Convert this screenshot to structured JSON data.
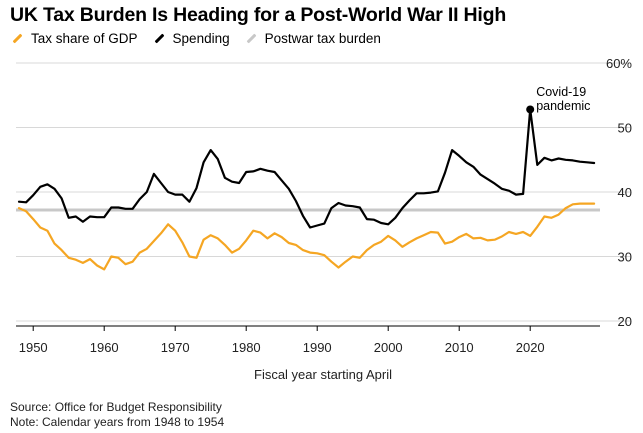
{
  "title": "UK Tax Burden Is Heading for a Post-World War II High",
  "legend": [
    {
      "label": "Tax share of GDP",
      "color": "#f5a623"
    },
    {
      "label": "Spending",
      "color": "#000000"
    },
    {
      "label": "Postwar tax burden",
      "color": "#c8c8c8"
    }
  ],
  "source": "Source: Office for Budget Responsibility",
  "note": "Note: Calendar years from 1948 to 1954",
  "chart_data": {
    "type": "line",
    "title": "UK Tax Burden Is Heading for a Post-World War II High",
    "xlabel": "Fiscal year starting April",
    "ylabel": "",
    "y_unit": "%",
    "xlim": [
      1948,
      2029
    ],
    "ylim": [
      20,
      60
    ],
    "x_ticks": [
      1950,
      1960,
      1970,
      1980,
      1990,
      2000,
      2010,
      2020
    ],
    "y_ticks": [
      20,
      30,
      40,
      50,
      60
    ],
    "y_tick_labels": [
      "20",
      "30",
      "40",
      "50",
      "60%"
    ],
    "grid": true,
    "legend_position": "top",
    "annotation": {
      "text_lines": [
        "Covid-19",
        "pandemic"
      ],
      "x": 2020,
      "y": 52.8
    },
    "reference_line": {
      "name": "Postwar tax burden",
      "y": 37.2
    },
    "series": [
      {
        "name": "Tax share of GDP",
        "color": "#f5a623",
        "x": [
          1948,
          1949,
          1950,
          1951,
          1952,
          1953,
          1954,
          1955,
          1956,
          1957,
          1958,
          1959,
          1960,
          1961,
          1962,
          1963,
          1964,
          1965,
          1966,
          1967,
          1968,
          1969,
          1970,
          1971,
          1972,
          1973,
          1974,
          1975,
          1976,
          1977,
          1978,
          1979,
          1980,
          1981,
          1982,
          1983,
          1984,
          1985,
          1986,
          1987,
          1988,
          1989,
          1990,
          1991,
          1992,
          1993,
          1994,
          1995,
          1996,
          1997,
          1998,
          1999,
          2000,
          2001,
          2002,
          2003,
          2004,
          2005,
          2006,
          2007,
          2008,
          2009,
          2010,
          2011,
          2012,
          2013,
          2014,
          2015,
          2016,
          2017,
          2018,
          2019,
          2020,
          2021,
          2022,
          2023,
          2024,
          2025,
          2026,
          2027,
          2028,
          2029
        ],
        "values": [
          37.5,
          37.0,
          35.8,
          34.5,
          34.0,
          32.0,
          31.0,
          29.8,
          29.5,
          29.0,
          29.6,
          28.6,
          28.0,
          30.0,
          29.8,
          28.8,
          29.2,
          30.6,
          31.2,
          32.4,
          33.6,
          35.0,
          34.0,
          32.2,
          30.0,
          29.8,
          32.6,
          33.3,
          32.8,
          31.8,
          30.6,
          31.2,
          32.5,
          34.0,
          33.7,
          32.8,
          33.6,
          33.0,
          32.1,
          31.8,
          31.0,
          30.6,
          30.5,
          30.2,
          29.2,
          28.3,
          29.2,
          30.0,
          29.8,
          31.0,
          31.8,
          32.3,
          33.2,
          32.5,
          31.5,
          32.2,
          32.8,
          33.3,
          33.8,
          33.7,
          32.0,
          32.3,
          33.0,
          33.5,
          32.8,
          32.9,
          32.5,
          32.6,
          33.1,
          33.8,
          33.5,
          33.8,
          33.2,
          34.6,
          36.2,
          36.0,
          36.5,
          37.5,
          38.1,
          38.2,
          38.2,
          38.2
        ]
      },
      {
        "name": "Spending",
        "color": "#000000",
        "x": [
          1948,
          1949,
          1950,
          1951,
          1952,
          1953,
          1954,
          1955,
          1956,
          1957,
          1958,
          1959,
          1960,
          1961,
          1962,
          1963,
          1964,
          1965,
          1966,
          1967,
          1968,
          1969,
          1970,
          1971,
          1972,
          1973,
          1974,
          1975,
          1976,
          1977,
          1978,
          1979,
          1980,
          1981,
          1982,
          1983,
          1984,
          1985,
          1986,
          1987,
          1988,
          1989,
          1990,
          1991,
          1992,
          1993,
          1994,
          1995,
          1996,
          1997,
          1998,
          1999,
          2000,
          2001,
          2002,
          2003,
          2004,
          2005,
          2006,
          2007,
          2008,
          2009,
          2010,
          2011,
          2012,
          2013,
          2014,
          2015,
          2016,
          2017,
          2018,
          2019,
          2020,
          2021,
          2022,
          2023,
          2024,
          2025,
          2026,
          2027,
          2028,
          2029
        ],
        "values": [
          38.5,
          38.4,
          39.5,
          40.8,
          41.2,
          40.5,
          39.0,
          36.0,
          36.2,
          35.4,
          36.2,
          36.1,
          36.1,
          37.6,
          37.6,
          37.4,
          37.4,
          38.9,
          40.0,
          42.8,
          41.4,
          40.0,
          39.6,
          39.6,
          38.5,
          40.6,
          44.6,
          46.5,
          45.1,
          42.2,
          41.6,
          41.4,
          43.1,
          43.2,
          43.6,
          43.3,
          43.1,
          41.8,
          40.5,
          38.6,
          36.3,
          34.5,
          34.8,
          35.1,
          37.5,
          38.3,
          37.9,
          37.8,
          37.6,
          35.8,
          35.7,
          35.2,
          35.0,
          36.0,
          37.5,
          38.7,
          39.8,
          39.8,
          39.9,
          40.1,
          43.0,
          46.5,
          45.6,
          44.6,
          43.9,
          42.7,
          42.0,
          41.3,
          40.5,
          40.2,
          39.6,
          39.7,
          52.8,
          44.2,
          45.3,
          44.9,
          45.2,
          45.0,
          44.9,
          44.7,
          44.6,
          44.5
        ]
      }
    ]
  }
}
